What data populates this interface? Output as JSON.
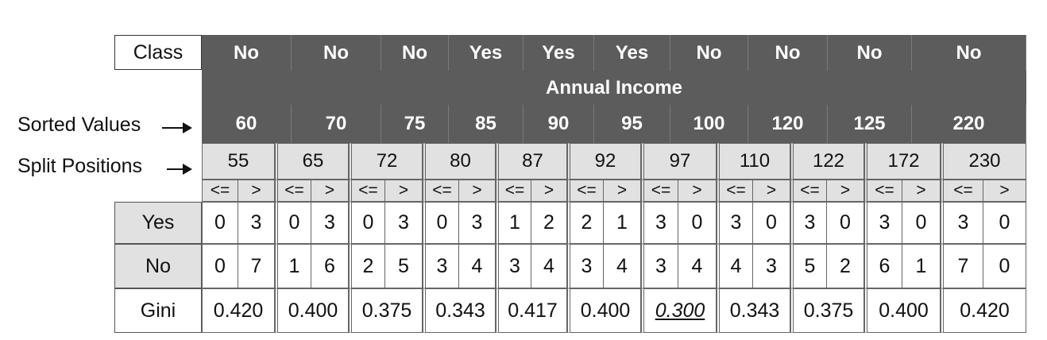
{
  "labels": {
    "class": "Class",
    "annual_income": "Annual Income",
    "sorted_values": "Sorted Values",
    "split_positions": "Split Positions",
    "yes": "Yes",
    "no": "No",
    "gini": "Gini"
  },
  "class_values": [
    "No",
    "No",
    "No",
    "Yes",
    "Yes",
    "Yes",
    "No",
    "No",
    "No",
    "No"
  ],
  "sorted_values": [
    "60",
    "70",
    "75",
    "85",
    "90",
    "95",
    "100",
    "120",
    "125",
    "220"
  ],
  "splits": [
    {
      "position": "55",
      "le": "<=",
      "gt": ">",
      "yes": [
        "0",
        "3"
      ],
      "no": [
        "0",
        "7"
      ],
      "gini": "0.420"
    },
    {
      "position": "65",
      "le": "<=",
      "gt": ">",
      "yes": [
        "0",
        "3"
      ],
      "no": [
        "1",
        "6"
      ],
      "gini": "0.400"
    },
    {
      "position": "72",
      "le": "<=",
      "gt": ">",
      "yes": [
        "0",
        "3"
      ],
      "no": [
        "2",
        "5"
      ],
      "gini": "0.375"
    },
    {
      "position": "80",
      "le": "<=",
      "gt": ">",
      "yes": [
        "0",
        "3"
      ],
      "no": [
        "3",
        "4"
      ],
      "gini": "0.343"
    },
    {
      "position": "87",
      "le": "<=",
      "gt": ">",
      "yes": [
        "1",
        "2"
      ],
      "no": [
        "3",
        "4"
      ],
      "gini": "0.417"
    },
    {
      "position": "92",
      "le": "<=",
      "gt": ">",
      "yes": [
        "2",
        "1"
      ],
      "no": [
        "3",
        "4"
      ],
      "gini": "0.400"
    },
    {
      "position": "97",
      "le": "<=",
      "gt": ">",
      "yes": [
        "3",
        "0"
      ],
      "no": [
        "3",
        "4"
      ],
      "gini": "0.300",
      "best": true
    },
    {
      "position": "110",
      "le": "<=",
      "gt": ">",
      "yes": [
        "3",
        "0"
      ],
      "no": [
        "4",
        "3"
      ],
      "gini": "0.343"
    },
    {
      "position": "122",
      "le": "<=",
      "gt": ">",
      "yes": [
        "3",
        "0"
      ],
      "no": [
        "5",
        "2"
      ],
      "gini": "0.375"
    },
    {
      "position": "172",
      "le": "<=",
      "gt": ">",
      "yes": [
        "3",
        "0"
      ],
      "no": [
        "6",
        "1"
      ],
      "gini": "0.400"
    },
    {
      "position": "230",
      "le": "<=",
      "gt": ">",
      "yes": [
        "3",
        "0"
      ],
      "no": [
        "7",
        "0"
      ],
      "gini": "0.420"
    }
  ]
}
